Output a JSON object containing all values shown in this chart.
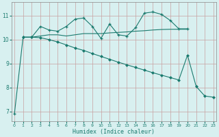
{
  "line1_x": [
    0,
    1,
    2,
    3,
    4,
    5,
    6,
    7,
    8,
    9,
    10,
    11,
    12,
    13,
    14,
    15,
    16,
    17,
    18,
    19,
    20
  ],
  "line1_y": [
    6.9,
    10.1,
    10.1,
    10.55,
    10.4,
    10.35,
    10.55,
    10.85,
    10.9,
    10.55,
    10.05,
    10.65,
    10.2,
    10.15,
    10.5,
    11.1,
    11.15,
    11.05,
    10.8,
    10.45,
    10.45
  ],
  "line2_x": [
    1,
    2,
    3,
    4,
    5,
    6,
    7,
    8,
    9,
    10,
    11,
    12,
    13,
    14,
    15,
    16,
    17,
    18,
    19,
    20
  ],
  "line2_y": [
    10.1,
    10.1,
    10.15,
    10.2,
    10.2,
    10.15,
    10.2,
    10.25,
    10.25,
    10.25,
    10.28,
    10.3,
    10.32,
    10.35,
    10.37,
    10.4,
    10.42,
    10.43,
    10.43,
    10.43
  ],
  "line3_x": [
    1,
    2,
    3,
    4,
    5,
    6,
    7,
    8,
    9,
    10,
    11,
    12,
    13,
    14,
    15,
    16,
    17,
    18,
    19,
    20,
    21,
    22,
    23
  ],
  "line3_y": [
    10.1,
    10.1,
    10.08,
    10.0,
    9.9,
    9.78,
    9.65,
    9.55,
    9.42,
    9.3,
    9.18,
    9.06,
    8.95,
    8.84,
    8.73,
    8.62,
    8.52,
    8.42,
    8.32,
    9.35,
    8.05,
    7.65,
    7.6
  ],
  "line_color": "#1a7a6e",
  "bg_color": "#d8f0f0",
  "xlabel": "Humidex (Indice chaleur)",
  "ylim": [
    6.6,
    11.55
  ],
  "xlim": [
    -0.3,
    23.3
  ],
  "yticks": [
    7,
    8,
    9,
    10,
    11
  ],
  "xticks": [
    0,
    1,
    2,
    3,
    4,
    5,
    6,
    7,
    8,
    9,
    10,
    11,
    12,
    13,
    14,
    15,
    16,
    17,
    18,
    19,
    20,
    21,
    22,
    23
  ]
}
